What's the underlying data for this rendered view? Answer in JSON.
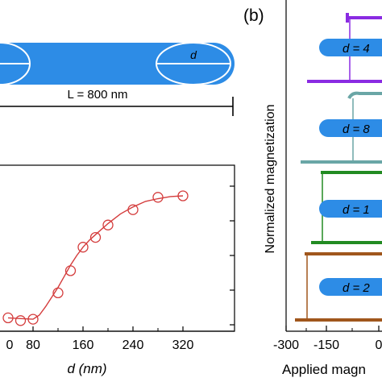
{
  "panel_b_label": "(b)",
  "schematic": {
    "d_label": "d",
    "length_label": "L = 800 nm",
    "colors": {
      "wire": "#2d8ce6",
      "outline": "#ffffff"
    }
  },
  "chart_data": [
    {
      "type": "scatter",
      "title": "",
      "xlabel": "d (nm)",
      "ylabel": "",
      "xlim": [
        50,
        335
      ],
      "ylim": [
        0,
        1
      ],
      "x_ticks": [
        "80",
        "160",
        "240",
        "320"
      ],
      "partial_tick": "0",
      "grid": false,
      "series": [
        {
          "x": [
            40,
            60,
            80,
            120,
            140,
            160,
            180,
            200,
            240,
            280,
            320
          ],
          "y": [
            0.05,
            0.03,
            0.04,
            0.23,
            0.39,
            0.56,
            0.63,
            0.72,
            0.83,
            0.92,
            0.93
          ],
          "marker": "open-circle",
          "color": "#d43c3c"
        }
      ],
      "fit_curve": {
        "x": [
          40,
          60,
          80,
          90,
          100,
          110,
          120,
          130,
          140,
          150,
          160,
          170,
          180,
          200,
          220,
          240,
          260,
          280,
          300,
          320
        ],
        "y": [
          0.05,
          0.045,
          0.04,
          0.07,
          0.13,
          0.2,
          0.27,
          0.35,
          0.43,
          0.5,
          0.56,
          0.61,
          0.65,
          0.73,
          0.8,
          0.85,
          0.89,
          0.91,
          0.925,
          0.93
        ],
        "color": "#d43c3c"
      }
    },
    {
      "type": "line",
      "title": "",
      "xlabel": "Applied magn",
      "ylabel": "Normalized magnetization",
      "x_ticks": [
        "-300",
        "-150",
        "0"
      ],
      "grid": false,
      "series": [
        {
          "name": "d = 4",
          "color": "#8a2be2"
        },
        {
          "name": "d = 8",
          "color": "#6aa6a6"
        },
        {
          "name": "d = 1",
          "color": "#228b22"
        },
        {
          "name": "d = 2",
          "color": "#a0561c"
        }
      ]
    }
  ]
}
